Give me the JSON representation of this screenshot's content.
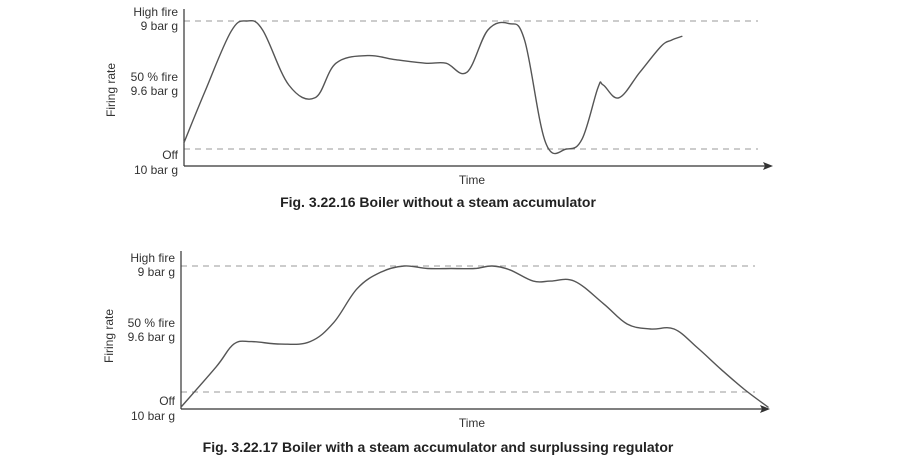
{
  "colors": {
    "line": "#555555",
    "axis": "#333333",
    "reference": "#999999",
    "text": "#333333"
  },
  "chart_data": [
    {
      "type": "line",
      "caption": "Fig. 3.22.16 Boiler without a steam accumulator",
      "xlabel": "Time",
      "ylabel": "Firing rate",
      "y_ticks": [
        {
          "label": "High fire",
          "sublabel": "9 bar g",
          "value": 1.0
        },
        {
          "label": "50 % fire",
          "sublabel": "9.6 bar g",
          "value": 0.5
        },
        {
          "label": "Off",
          "sublabel": "10 bar g",
          "value": 0.0
        }
      ],
      "reference_lines": [
        1.0,
        0.0
      ],
      "xlim": [
        0,
        1
      ],
      "ylim": [
        -0.12,
        1.05
      ],
      "grid": false,
      "series": [
        {
          "x": [
            0.0,
            0.04,
            0.09,
            0.12,
            0.15,
            0.2,
            0.25,
            0.29,
            0.35,
            0.4,
            0.46,
            0.5,
            0.54,
            0.58,
            0.62,
            0.65,
            0.69,
            0.73,
            0.76,
            0.79,
            0.8,
            0.83,
            0.87,
            0.91,
            0.93,
            0.95
          ],
          "y": [
            0.05,
            0.45,
            0.92,
            1.0,
            0.93,
            0.5,
            0.4,
            0.67,
            0.73,
            0.7,
            0.67,
            0.67,
            0.6,
            0.93,
            0.98,
            0.85,
            0.05,
            0.0,
            0.08,
            0.48,
            0.5,
            0.4,
            0.6,
            0.8,
            0.85,
            0.88
          ]
        }
      ]
    },
    {
      "type": "line",
      "caption": "Fig. 3.22.17 Boiler with a steam accumulator and surplussing regulator",
      "xlabel": "Time",
      "ylabel": "Firing rate",
      "y_ticks": [
        {
          "label": "High fire",
          "sublabel": "9 bar g",
          "value": 1.0
        },
        {
          "label": "50 % fire",
          "sublabel": "9.6 bar g",
          "value": 0.5
        },
        {
          "label": "Off",
          "sublabel": "10 bar g",
          "value": 0.0
        }
      ],
      "reference_lines": [
        1.0,
        0.0
      ],
      "xlim": [
        0,
        1
      ],
      "ylim": [
        -0.12,
        1.05
      ],
      "grid": false,
      "series": [
        {
          "x": [
            0.0,
            0.06,
            0.09,
            0.12,
            0.17,
            0.22,
            0.26,
            0.3,
            0.34,
            0.38,
            0.42,
            0.46,
            0.5,
            0.53,
            0.56,
            0.6,
            0.63,
            0.67,
            0.72,
            0.76,
            0.8,
            0.84,
            0.88,
            0.92,
            0.96,
            1.0
          ],
          "y": [
            -0.12,
            0.2,
            0.38,
            0.4,
            0.38,
            0.4,
            0.55,
            0.82,
            0.95,
            1.0,
            0.98,
            0.98,
            0.98,
            1.0,
            0.97,
            0.88,
            0.88,
            0.88,
            0.7,
            0.54,
            0.5,
            0.5,
            0.35,
            0.18,
            0.02,
            -0.12
          ]
        }
      ]
    }
  ]
}
